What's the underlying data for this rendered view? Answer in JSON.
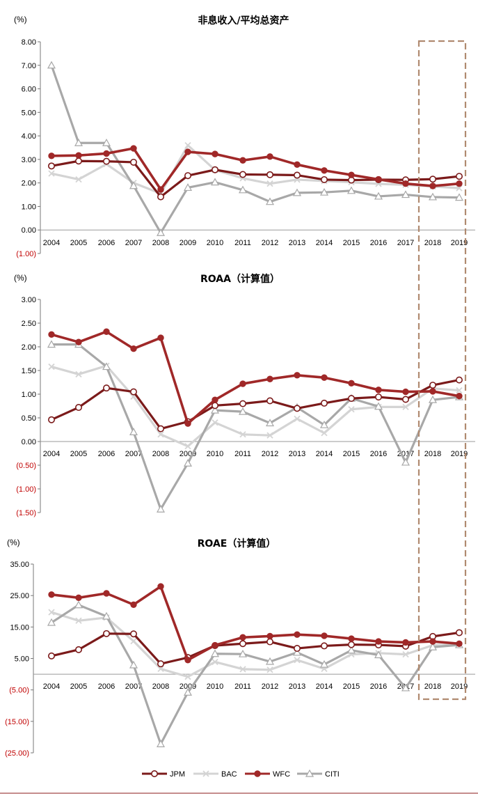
{
  "colors": {
    "JPM": "#7b1a1a",
    "BAC": "#d4d4d4",
    "WFC": "#a02828",
    "CITI": "#a8a8a8",
    "highlight": "#b08a70",
    "negative": "#c00000"
  },
  "legend": [
    {
      "name": "JPM",
      "marker": "circle-open"
    },
    {
      "name": "BAC",
      "marker": "x"
    },
    {
      "name": "WFC",
      "marker": "circle-filled"
    },
    {
      "name": "CITI",
      "marker": "triangle-open"
    }
  ],
  "highlight_years": [
    "2018",
    "2019"
  ],
  "chart_data": [
    {
      "type": "line",
      "title": "非息收入/平均总资产",
      "unit": "(%)",
      "categories": [
        "2004",
        "2005",
        "2006",
        "2007",
        "2008",
        "2009",
        "2010",
        "2011",
        "2012",
        "2013",
        "2014",
        "2015",
        "2016",
        "2017",
        "2018",
        "2019"
      ],
      "ylim": [
        -1,
        8
      ],
      "yticks": [
        -1,
        0,
        1,
        2,
        3,
        4,
        5,
        6,
        7,
        8
      ],
      "ytick_labels": [
        "(1.00)",
        "0.00",
        "1.00",
        "2.00",
        "3.00",
        "4.00",
        "5.00",
        "6.00",
        "7.00",
        "8.00"
      ],
      "series": [
        {
          "name": "JPM",
          "values": [
            2.72,
            2.93,
            2.92,
            2.88,
            1.41,
            2.31,
            2.56,
            2.36,
            2.35,
            2.33,
            2.14,
            2.12,
            2.14,
            2.13,
            2.16,
            2.28
          ]
        },
        {
          "name": "BAC",
          "values": [
            2.4,
            2.15,
            2.8,
            2.0,
            1.55,
            3.6,
            2.55,
            2.2,
            1.97,
            2.14,
            2.08,
            2.03,
            1.96,
            1.92,
            1.85,
            1.78
          ]
        },
        {
          "name": "WFC",
          "values": [
            3.15,
            3.17,
            3.25,
            3.47,
            1.72,
            3.32,
            3.23,
            2.96,
            3.12,
            2.78,
            2.53,
            2.34,
            2.15,
            1.97,
            1.87,
            1.97
          ]
        },
        {
          "name": "CITI",
          "values": [
            7.0,
            3.7,
            3.7,
            1.88,
            -0.12,
            1.8,
            2.03,
            1.7,
            1.2,
            1.58,
            1.6,
            1.67,
            1.43,
            1.5,
            1.4,
            1.38
          ]
        }
      ]
    },
    {
      "type": "line",
      "title": "ROAA（计算值）",
      "unit": "(%)",
      "categories": [
        "2004",
        "2005",
        "2006",
        "2007",
        "2008",
        "2009",
        "2010",
        "2011",
        "2012",
        "2013",
        "2014",
        "2015",
        "2016",
        "2017",
        "2018",
        "2019"
      ],
      "ylim": [
        -1.5,
        3
      ],
      "yticks": [
        -1.5,
        -1,
        -0.5,
        0,
        0.5,
        1,
        1.5,
        2,
        2.5,
        3
      ],
      "ytick_labels": [
        "(1.50)",
        "(1.00)",
        "(0.50)",
        "0.00",
        "0.50",
        "1.00",
        "1.50",
        "2.00",
        "2.50",
        "3.00"
      ],
      "series": [
        {
          "name": "JPM",
          "values": [
            0.46,
            0.72,
            1.13,
            1.05,
            0.27,
            0.42,
            0.76,
            0.8,
            0.86,
            0.7,
            0.81,
            0.91,
            0.94,
            0.89,
            1.19,
            1.3
          ]
        },
        {
          "name": "BAC",
          "values": [
            1.58,
            1.42,
            1.6,
            0.95,
            0.15,
            -0.1,
            0.4,
            0.15,
            0.13,
            0.48,
            0.18,
            0.68,
            0.73,
            0.73,
            1.12,
            1.08
          ]
        },
        {
          "name": "WFC",
          "values": [
            2.26,
            2.1,
            2.32,
            1.96,
            2.19,
            0.38,
            0.88,
            1.22,
            1.32,
            1.4,
            1.35,
            1.23,
            1.09,
            1.05,
            1.06,
            0.96
          ]
        },
        {
          "name": "CITI",
          "values": [
            2.05,
            2.05,
            1.58,
            0.2,
            -1.43,
            -0.46,
            0.66,
            0.63,
            0.39,
            0.72,
            0.35,
            0.91,
            0.74,
            -0.44,
            0.88,
            0.94
          ]
        }
      ]
    },
    {
      "type": "line",
      "title": "ROAE（计算值）",
      "unit": "(%)",
      "categories": [
        "2004",
        "2005",
        "2006",
        "2007",
        "2008",
        "2009",
        "2010",
        "2011",
        "2012",
        "2013",
        "2014",
        "2015",
        "2016",
        "2017",
        "2018",
        "2019"
      ],
      "ylim": [
        -25,
        35
      ],
      "yticks": [
        -25,
        -15,
        -5,
        5,
        15,
        25,
        35
      ],
      "ytick_labels": [
        "(25.00)",
        "(15.00)",
        "(5.00)",
        "5.00",
        "15.00",
        "25.00",
        "35.00"
      ],
      "series": [
        {
          "name": "JPM",
          "values": [
            5.8,
            7.8,
            12.9,
            12.8,
            3.3,
            5.3,
            9.1,
            9.7,
            10.3,
            8.2,
            9.0,
            9.4,
            9.3,
            8.9,
            12.0,
            13.2
          ]
        },
        {
          "name": "BAC",
          "values": [
            19.7,
            17.0,
            18.0,
            10.5,
            1.7,
            -0.8,
            3.9,
            1.6,
            1.4,
            4.5,
            1.7,
            6.3,
            6.7,
            6.3,
            9.2,
            9.4
          ]
        },
        {
          "name": "WFC",
          "values": [
            25.3,
            24.3,
            25.7,
            22.1,
            27.9,
            4.5,
            9.2,
            11.7,
            12.1,
            12.6,
            12.2,
            11.3,
            10.4,
            10.1,
            10.4,
            9.7
          ]
        },
        {
          "name": "CITI",
          "values": [
            16.4,
            22.0,
            18.4,
            2.9,
            -22.2,
            -5.8,
            6.5,
            6.4,
            4.0,
            6.9,
            3.1,
            7.6,
            6.1,
            -4.4,
            8.6,
            9.3
          ]
        }
      ]
    }
  ]
}
